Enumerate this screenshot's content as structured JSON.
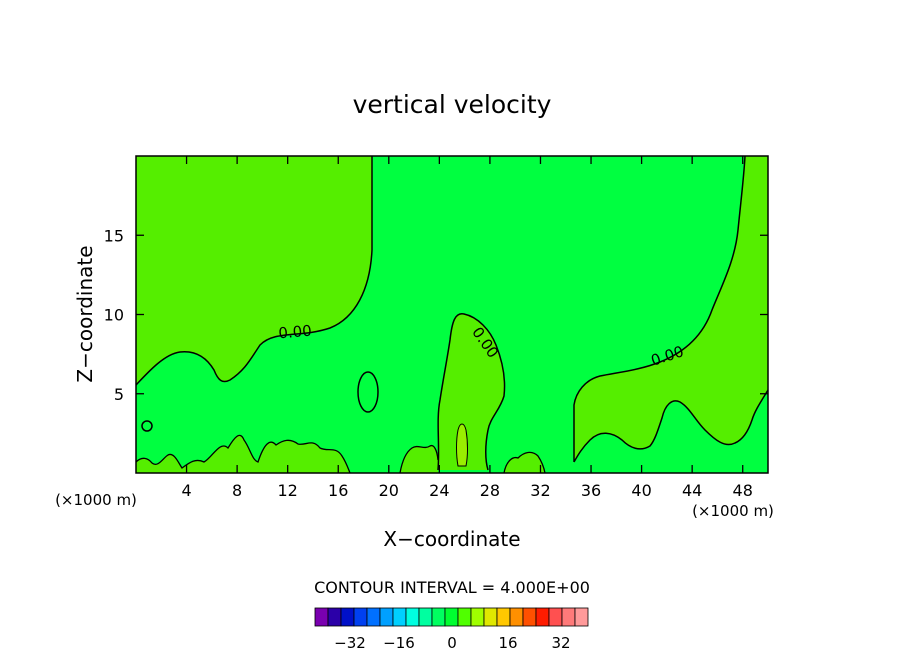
{
  "chart_data": {
    "type": "contour",
    "title": "vertical velocity",
    "xlabel": "X−coordinate",
    "ylabel": "Z−coordinate",
    "x_unit_left": "(×1000 m)",
    "x_unit_right": "(×1000 m)",
    "xlim": [
      0,
      50
    ],
    "ylim": [
      0,
      20
    ],
    "x_ticks": [
      4,
      8,
      12,
      16,
      20,
      24,
      28,
      32,
      36,
      40,
      44,
      48
    ],
    "y_ticks": [
      5,
      10,
      15
    ],
    "contour_labels": [
      "0.00",
      "0.00",
      "0.00"
    ],
    "contour_interval_text": "CONTOUR INTERVAL = 4.000E+00",
    "colorbar": {
      "ticks": [
        "−32",
        "−16",
        "0",
        "16",
        "32"
      ],
      "colors": [
        "#7a00b0",
        "#2b00a8",
        "#0010c8",
        "#0040f0",
        "#0070ff",
        "#00a0ff",
        "#00d0ff",
        "#00ffe0",
        "#00ffa0",
        "#00ff60",
        "#00ff30",
        "#50ff00",
        "#a0ff00",
        "#e0e800",
        "#ffc800",
        "#ff9000",
        "#ff5000",
        "#ff1c00",
        "#ff5050",
        "#ff7a7a",
        "#ff9a9a"
      ]
    },
    "fill_colors": {
      "positive": "#55ee00",
      "near_zero": "#00ff40",
      "small_positive": "#99ee00"
    }
  }
}
